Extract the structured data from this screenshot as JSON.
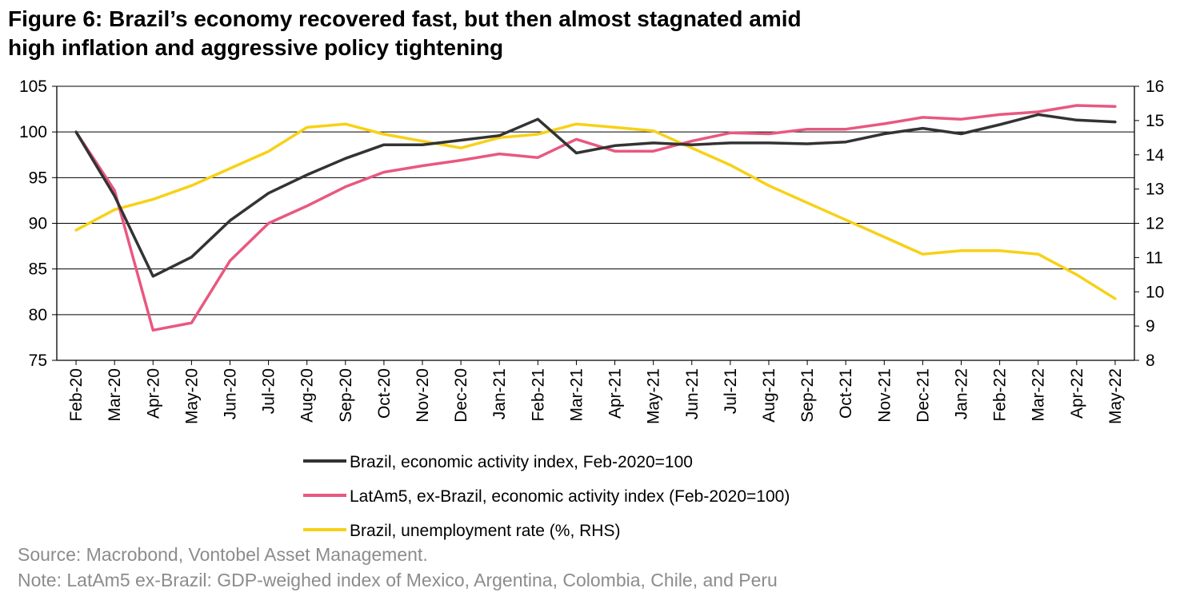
{
  "title_line1": "Figure 6: Brazil’s economy recovered fast, but then almost stagnated amid",
  "title_line2": "high inflation and aggressive policy tightening",
  "source": "Source: Macrobond, Vontobel Asset Management.",
  "note": "Note: LatAm5 ex-Brazil: GDP-weighed index of Mexico, Argentina, Colombia, Chile, and Peru",
  "chart_data": {
    "type": "line",
    "categories": [
      "Feb-20",
      "Mar-20",
      "Apr-20",
      "May-20",
      "Jun-20",
      "Jul-20",
      "Aug-20",
      "Sep-20",
      "Oct-20",
      "Nov-20",
      "Dec-20",
      "Jan-21",
      "Feb-21",
      "Mar-21",
      "Apr-21",
      "May-21",
      "Jun-21",
      "Jul-21",
      "Aug-21",
      "Sep-21",
      "Oct-21",
      "Nov-21",
      "Dec-21",
      "Jan-22",
      "Feb-22",
      "Mar-22",
      "Apr-22",
      "May-22"
    ],
    "y_left": {
      "min": 75,
      "max": 105,
      "ticks": [
        "75",
        "80",
        "85",
        "90",
        "95",
        "100",
        "105"
      ]
    },
    "y_right": {
      "min": 8,
      "max": 16,
      "ticks": [
        "8",
        "9",
        "10",
        "11",
        "12",
        "13",
        "14",
        "15",
        "16"
      ]
    },
    "grid": "horizontal",
    "legend_position": "bottom",
    "series": [
      {
        "name": "Brazil, economic activity index, Feb-2020=100",
        "axis": "left",
        "color": "#333333",
        "values": [
          100,
          93,
          84.2,
          86.3,
          90.3,
          93.3,
          95.3,
          97.1,
          98.6,
          98.6,
          99.1,
          99.6,
          101.4,
          97.7,
          98.5,
          98.8,
          98.6,
          98.8,
          98.8,
          98.7,
          98.9,
          99.8,
          100.4,
          99.8,
          100.8,
          101.9,
          101.3,
          101.1
        ]
      },
      {
        "name": "LatAm5, ex-Brazil, economic activity index (Feb-2020=100)",
        "axis": "left",
        "color": "#e8587f",
        "values": [
          100,
          93.6,
          78.3,
          79.1,
          85.9,
          90,
          91.9,
          94,
          95.6,
          96.3,
          96.9,
          97.6,
          97.2,
          99.2,
          97.9,
          97.9,
          99,
          99.9,
          99.8,
          100.3,
          100.3,
          100.9,
          101.6,
          101.4,
          101.9,
          102.2,
          102.9,
          102.8
        ]
      },
      {
        "name": "Brazil, unemployment rate (%, RHS)",
        "axis": "right",
        "color": "#f7d117",
        "values": [
          11.8,
          12.4,
          12.7,
          13.1,
          13.6,
          14.1,
          14.8,
          14.9,
          14.6,
          14.4,
          14.2,
          14.5,
          14.6,
          14.9,
          14.8,
          14.7,
          14.2,
          13.7,
          13.1,
          12.6,
          12.1,
          11.6,
          11.1,
          11.2,
          11.2,
          11.1,
          10.5,
          9.8
        ]
      }
    ]
  }
}
